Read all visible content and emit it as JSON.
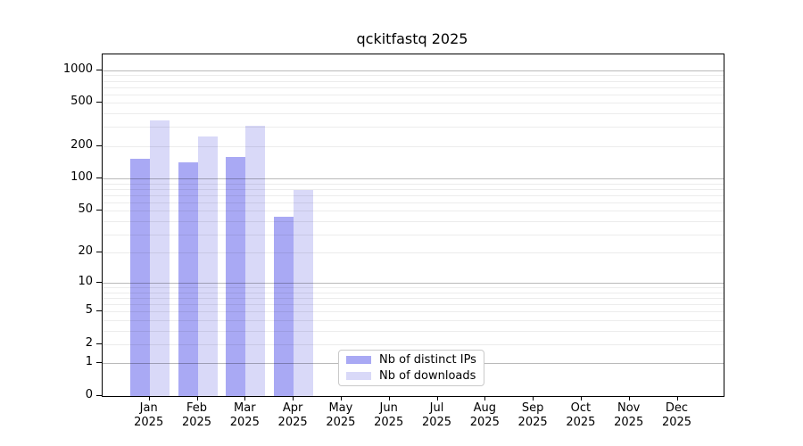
{
  "chart_data": {
    "type": "bar",
    "title": "qckitfastq 2025",
    "categories": [
      "Jan",
      "Feb",
      "Mar",
      "Apr",
      "May",
      "Jun",
      "Jul",
      "Aug",
      "Sep",
      "Oct",
      "Nov",
      "Dec"
    ],
    "x_tick_year": "2025",
    "series": [
      {
        "name": "Nb of distinct IPs",
        "color": "#a9a9f4",
        "values": [
          152,
          140,
          158,
          44,
          0,
          0,
          0,
          0,
          0,
          0,
          0,
          0
        ]
      },
      {
        "name": "Nb of downloads",
        "color": "#d9d9f8",
        "values": [
          345,
          244,
          308,
          78,
          0,
          0,
          0,
          0,
          0,
          0,
          0,
          0
        ]
      }
    ],
    "y_ticks": [
      0,
      1,
      2,
      5,
      10,
      20,
      50,
      100,
      200,
      500,
      1000
    ],
    "y_scale": "log10(value+1)",
    "ylim": [
      0,
      1000
    ],
    "grid": true,
    "legend_position": "lower center",
    "colors": {
      "background": "#ffffff",
      "axis": "#000000",
      "major_grid": "#bababa",
      "minor_grid": "#ececec"
    }
  }
}
